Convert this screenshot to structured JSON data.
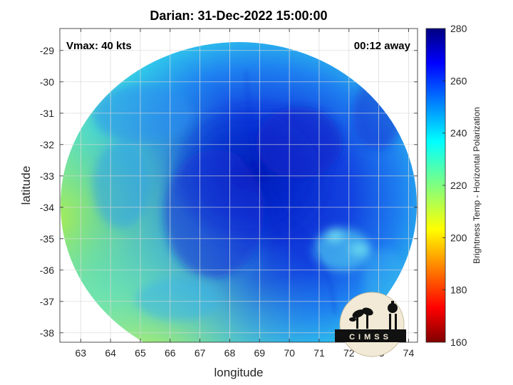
{
  "title": "Darian: 31-Dec-2022 15:00:00",
  "annotations": {
    "vmax": "Vmax: 40 kts",
    "time_away": "00:12 away"
  },
  "axes": {
    "xlabel": "longitude",
    "ylabel": "latitude",
    "x_range": [
      62.3,
      74.3
    ],
    "y_range": [
      -38.3,
      -28.3
    ],
    "x_ticks": [
      "63",
      "64",
      "65",
      "66",
      "67",
      "68",
      "69",
      "70",
      "71",
      "72",
      "73",
      "74"
    ],
    "y_ticks": [
      "-29",
      "-30",
      "-31",
      "-32",
      "-33",
      "-34",
      "-35",
      "-36",
      "-37",
      "-38"
    ],
    "grid": true
  },
  "colorbar": {
    "label": "Brightness Temp - Horizontal Polarization",
    "range": [
      160,
      280
    ],
    "ticks": [
      "280",
      "260",
      "240",
      "220",
      "200",
      "180",
      "160"
    ],
    "colormap": "jet"
  },
  "logo": {
    "text": "CIMSS"
  },
  "chart_data": {
    "type": "heatmap",
    "title": "Darian: 31-Dec-2022 15:00:00",
    "xlabel": "longitude",
    "ylabel": "latitude",
    "xlim": [
      62.3,
      74.3
    ],
    "ylim": [
      -38.3,
      -28.3
    ],
    "value_range": [
      160,
      280
    ],
    "center": {
      "lon": 69.0,
      "lat": -33.2
    },
    "colors": {
      "coldest": "#0a23c8",
      "mid": "#1e8cf0",
      "edge": "#32d2e6",
      "warm_edge": "#c8f03c"
    }
  }
}
